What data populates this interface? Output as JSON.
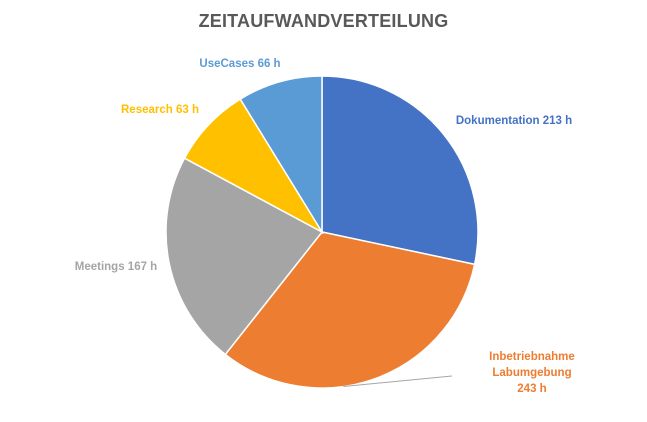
{
  "chart_data": {
    "type": "pie",
    "title": "ZEITAUFWANDVERTEILUNG",
    "unit": "h",
    "slices": [
      {
        "name": "Dokumentation",
        "value": 213,
        "color": "#4472C4",
        "label_lines": [
          "Dokumentation 213 h"
        ]
      },
      {
        "name": "Inbetriebnahme Labumgebung",
        "value": 243,
        "color": "#ED7D31",
        "label_lines": [
          "Inbetriebnahme",
          "Labumgebung",
          "243 h"
        ]
      },
      {
        "name": "Meetings",
        "value": 167,
        "color": "#A5A5A5",
        "label_lines": [
          "Meetings 167 h"
        ]
      },
      {
        "name": "Research",
        "value": 63,
        "color": "#FFC000",
        "label_lines": [
          "Research 63 h"
        ]
      },
      {
        "name": "UseCases",
        "value": 66,
        "color": "#5B9BD5",
        "label_lines": [
          "UseCases 66 h"
        ]
      }
    ],
    "legend": "none",
    "data_labels": "outside with leader line"
  }
}
